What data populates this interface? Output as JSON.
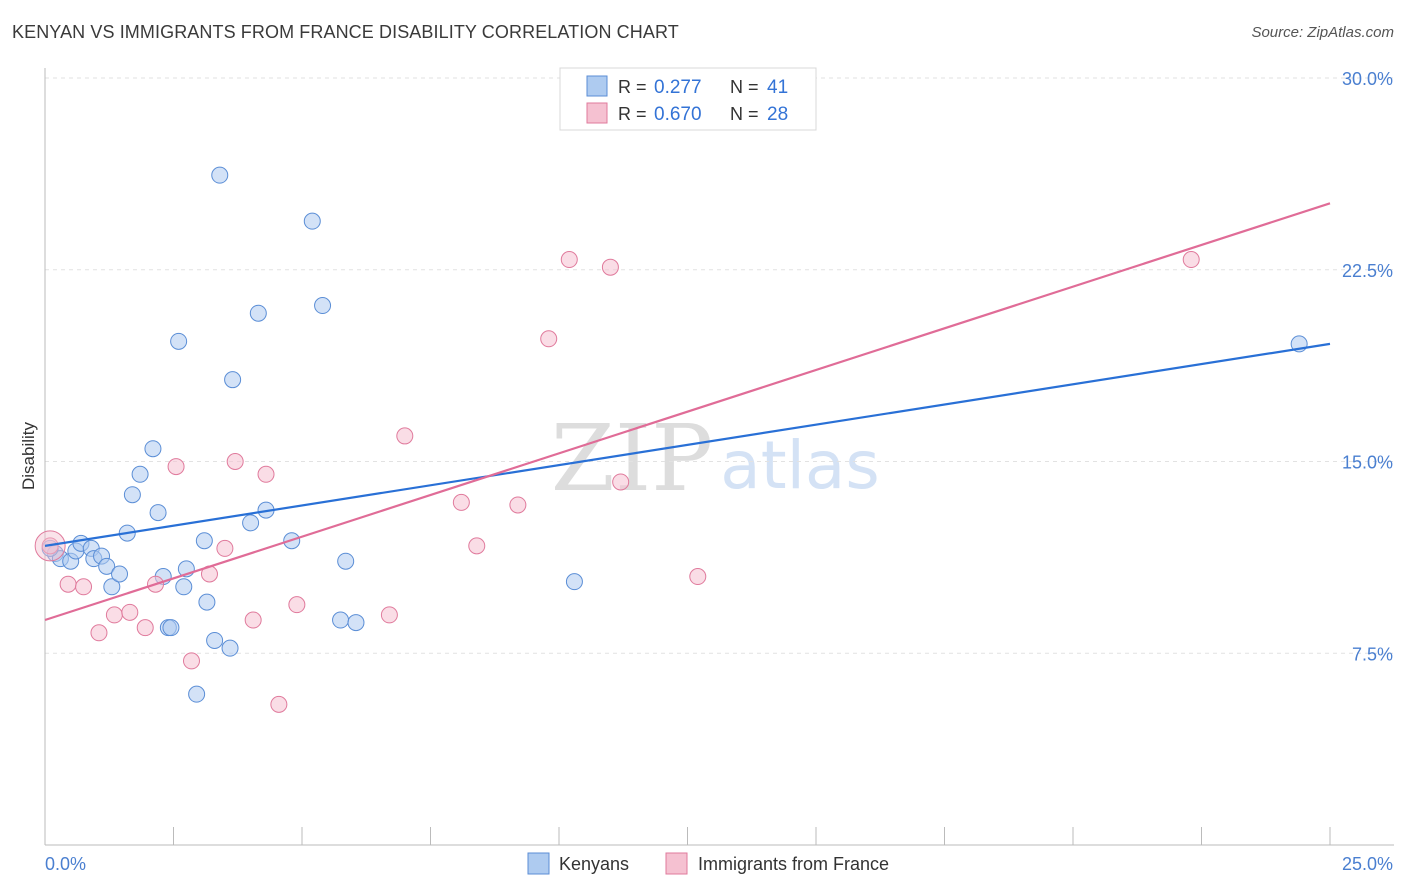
{
  "chart_data": {
    "type": "scatter",
    "title": "KENYAN VS IMMIGRANTS FROM FRANCE DISABILITY CORRELATION CHART",
    "source": "Source: ZipAtlas.com",
    "xlabel": "",
    "ylabel": "Disability",
    "xlim": [
      0,
      25
    ],
    "ylim": [
      0,
      30
    ],
    "x_tick_labels": [
      "0.0%",
      "25.0%"
    ],
    "y_ticks": [
      7.5,
      15.0,
      22.5,
      30.0
    ],
    "y_tick_labels": [
      "7.5%",
      "15.0%",
      "22.5%",
      "30.0%"
    ],
    "watermark": {
      "zip": "ZIP",
      "atlas": "atlas"
    },
    "legend_top": [
      {
        "r_label": "R = ",
        "r_value": "0.277",
        "n_label": "N = ",
        "n_value": "41"
      },
      {
        "r_label": "R = ",
        "r_value": "0.670",
        "n_label": "N = ",
        "n_value": "28"
      }
    ],
    "series": [
      {
        "name": "Kenyans",
        "fill": "#aecbf0",
        "stroke": "#5b8ed6",
        "line_color": "#2970d6",
        "trend": {
          "x": [
            0,
            25
          ],
          "y": [
            11.7,
            19.6
          ]
        },
        "points": [
          [
            0.2,
            11.4
          ],
          [
            0.3,
            11.2
          ],
          [
            0.5,
            11.1
          ],
          [
            0.6,
            11.5
          ],
          [
            0.7,
            11.8
          ],
          [
            0.9,
            11.6
          ],
          [
            0.95,
            11.2
          ],
          [
            1.1,
            11.3
          ],
          [
            1.2,
            10.9
          ],
          [
            1.3,
            10.1
          ],
          [
            1.45,
            10.6
          ],
          [
            1.6,
            12.2
          ],
          [
            1.7,
            13.7
          ],
          [
            1.85,
            14.5
          ],
          [
            2.1,
            15.5
          ],
          [
            2.2,
            13.0
          ],
          [
            2.3,
            10.5
          ],
          [
            2.4,
            8.5
          ],
          [
            2.6,
            19.7
          ],
          [
            2.7,
            10.1
          ],
          [
            2.75,
            10.8
          ],
          [
            2.95,
            5.9
          ],
          [
            3.1,
            11.9
          ],
          [
            3.15,
            9.5
          ],
          [
            3.3,
            8.0
          ],
          [
            3.4,
            26.2
          ],
          [
            3.6,
            7.7
          ],
          [
            3.65,
            18.2
          ],
          [
            4.0,
            12.6
          ],
          [
            4.15,
            20.8
          ],
          [
            4.3,
            13.1
          ],
          [
            4.8,
            11.9
          ],
          [
            5.2,
            24.4
          ],
          [
            5.4,
            21.1
          ],
          [
            5.75,
            8.8
          ],
          [
            5.85,
            11.1
          ],
          [
            6.05,
            8.7
          ],
          [
            10.3,
            10.3
          ],
          [
            24.4,
            19.6
          ],
          [
            2.45,
            8.5
          ],
          [
            0.1,
            11.6
          ]
        ]
      },
      {
        "name": "Immigrants from France",
        "fill": "#f5c1d1",
        "stroke": "#e07a9c",
        "line_color": "#e06c97",
        "trend": {
          "x": [
            0,
            25
          ],
          "y": [
            8.8,
            25.1
          ]
        },
        "points": [
          [
            0.1,
            11.7
          ],
          [
            0.45,
            10.2
          ],
          [
            0.75,
            10.1
          ],
          [
            1.05,
            8.3
          ],
          [
            1.35,
            9.0
          ],
          [
            1.65,
            9.1
          ],
          [
            1.95,
            8.5
          ],
          [
            2.15,
            10.2
          ],
          [
            2.55,
            14.8
          ],
          [
            2.85,
            7.2
          ],
          [
            3.2,
            10.6
          ],
          [
            3.5,
            11.6
          ],
          [
            3.7,
            15.0
          ],
          [
            4.05,
            8.8
          ],
          [
            4.3,
            14.5
          ],
          [
            4.55,
            5.5
          ],
          [
            4.9,
            9.4
          ],
          [
            6.7,
            9.0
          ],
          [
            7.0,
            16.0
          ],
          [
            8.1,
            13.4
          ],
          [
            8.4,
            11.7
          ],
          [
            9.2,
            13.3
          ],
          [
            9.8,
            19.8
          ],
          [
            10.2,
            22.9
          ],
          [
            11.0,
            22.6
          ],
          [
            11.2,
            14.2
          ],
          [
            12.7,
            10.5
          ],
          [
            22.3,
            22.9
          ]
        ]
      }
    ]
  }
}
